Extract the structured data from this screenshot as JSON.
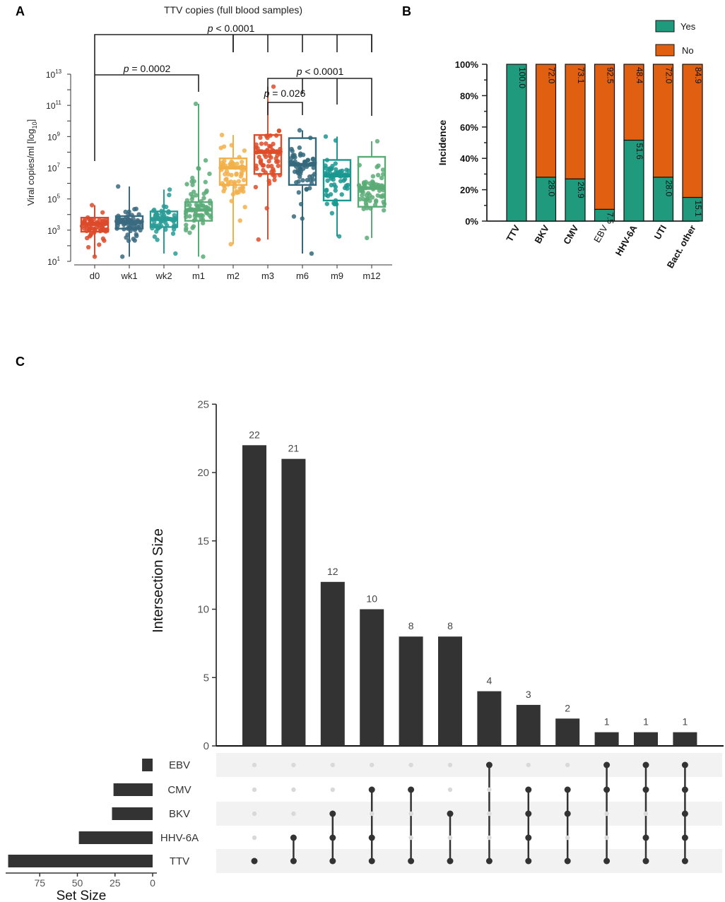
{
  "panels": {
    "a": {
      "label": "A"
    },
    "b": {
      "label": "B"
    },
    "c": {
      "label": "C"
    }
  },
  "chart_data": [
    {
      "id": "A",
      "type": "box",
      "title": "TTV copies (full blood samples)",
      "ylabel": "Viral copies/ml [log10]",
      "ylabel_main": "Viral copies/ml [log",
      "ylabel_sub": "10",
      "ylabel_end": "]",
      "yscale": "log10",
      "ylim_log": [
        1,
        13
      ],
      "yticks": [
        {
          "base": "10",
          "exp": "1",
          "v": 1
        },
        {
          "base": "10",
          "exp": "3",
          "v": 3
        },
        {
          "base": "10",
          "exp": "5",
          "v": 5
        },
        {
          "base": "10",
          "exp": "7",
          "v": 7
        },
        {
          "base": "10",
          "exp": "9",
          "v": 9
        },
        {
          "base": "10",
          "exp": "11",
          "v": 11
        },
        {
          "base": "10",
          "exp": "13",
          "v": 13
        }
      ],
      "categories": [
        "d0",
        "wk1",
        "wk2",
        "m1",
        "m2",
        "m3",
        "m6",
        "m9",
        "m12"
      ],
      "colors": [
        "#dd4a2a",
        "#3a6a80",
        "#2a9c96",
        "#5aab78",
        "#f2b04a",
        "#de4c28",
        "#34697c",
        "#1a9890",
        "#5aab76"
      ],
      "boxes": [
        {
          "min": 1.3,
          "q1": 2.9,
          "median": 3.4,
          "q3": 3.8,
          "max": 4.6
        },
        {
          "min": 1.3,
          "q1": 3.1,
          "median": 3.5,
          "q3": 3.9,
          "max": 5.8
        },
        {
          "min": 1.5,
          "q1": 3.2,
          "median": 3.7,
          "q3": 4.2,
          "max": 5.6
        },
        {
          "min": 1.3,
          "q1": 3.6,
          "median": 4.3,
          "q3": 4.8,
          "max": 11.1
        },
        {
          "min": 2.1,
          "q1": 5.9,
          "median": 7.0,
          "q3": 7.6,
          "max": 9.1
        },
        {
          "min": 2.4,
          "q1": 6.6,
          "median": 8.0,
          "q3": 9.1,
          "max": 12.2
        },
        {
          "min": 1.5,
          "q1": 5.9,
          "median": 7.2,
          "q3": 8.9,
          "max": 9.4
        },
        {
          "min": 2.6,
          "q1": 4.9,
          "median": 6.5,
          "q3": 7.5,
          "max": 9.0
        },
        {
          "min": 2.5,
          "q1": 4.5,
          "median": 5.7,
          "q3": 7.7,
          "max": 8.7
        }
      ],
      "annotations": [
        {
          "prefix": "p",
          "text": " < 0.0001"
        },
        {
          "prefix": "p",
          "text": " = 0.0002"
        },
        {
          "prefix": "p",
          "text": " < 0.0001"
        },
        {
          "prefix": "p",
          "text": " = 0.026"
        }
      ]
    },
    {
      "id": "B",
      "type": "stacked-bar",
      "ylabel": "Incidence",
      "yticks": [
        "0%",
        "20%",
        "40%",
        "60%",
        "80%",
        "100%"
      ],
      "categories": [
        "TTV",
        "BKV",
        "CMV",
        "EBV",
        "HHV-6A",
        "UTI",
        "Bact. other"
      ],
      "bold_categories": [
        true,
        true,
        true,
        false,
        true,
        true,
        true
      ],
      "series": [
        {
          "name": "Yes",
          "color": "#1f9a7d",
          "values": [
            100.0,
            28.0,
            26.9,
            7.5,
            51.6,
            28.0,
            15.1
          ]
        },
        {
          "name": "No",
          "color": "#e05f10",
          "values": [
            0,
            72.0,
            73.1,
            92.5,
            48.4,
            72.0,
            84.9
          ]
        }
      ],
      "yes_labels": [
        "100.0",
        "28.0",
        "26.9",
        "7.5",
        "51.6",
        "28.0",
        "15.1"
      ],
      "no_labels": [
        "",
        "72.0",
        "73.1",
        "92.5",
        "48.4",
        "72.0",
        "84.9"
      ],
      "legend": [
        "Yes",
        "No"
      ],
      "legend_position": "top-right"
    },
    {
      "id": "C",
      "type": "upset",
      "ylabel": "Intersection Size",
      "ylim": [
        0,
        25
      ],
      "yticks": [
        "0",
        "5",
        "10",
        "15",
        "20",
        "25"
      ],
      "intersection_sizes": [
        22,
        21,
        12,
        10,
        8,
        8,
        4,
        3,
        2,
        1,
        1,
        1
      ],
      "intersection_labels": [
        "22",
        "21",
        "12",
        "10",
        "8",
        "8",
        "4",
        "3",
        "2",
        "1",
        "1",
        "1"
      ],
      "sets": [
        "EBV",
        "CMV",
        "BKV",
        "HHV-6A",
        "TTV"
      ],
      "set_sizes": [
        7,
        26,
        27,
        49,
        96
      ],
      "set_size_label": "Set Size",
      "set_size_ticks": [
        "75",
        "50",
        "25",
        "0"
      ],
      "memberships": [
        [
          "TTV"
        ],
        [
          "TTV",
          "HHV-6A"
        ],
        [
          "TTV",
          "HHV-6A",
          "BKV"
        ],
        [
          "TTV",
          "HHV-6A",
          "CMV"
        ],
        [
          "TTV",
          "CMV"
        ],
        [
          "TTV",
          "BKV"
        ],
        [
          "TTV",
          "EBV"
        ],
        [
          "TTV",
          "HHV-6A",
          "BKV",
          "CMV"
        ],
        [
          "TTV",
          "BKV",
          "CMV"
        ],
        [
          "TTV",
          "CMV",
          "EBV"
        ],
        [
          "TTV",
          "HHV-6A",
          "CMV",
          "EBV"
        ],
        [
          "TTV",
          "HHV-6A",
          "BKV",
          "CMV",
          "EBV"
        ]
      ],
      "bar_color": "#333333"
    }
  ]
}
